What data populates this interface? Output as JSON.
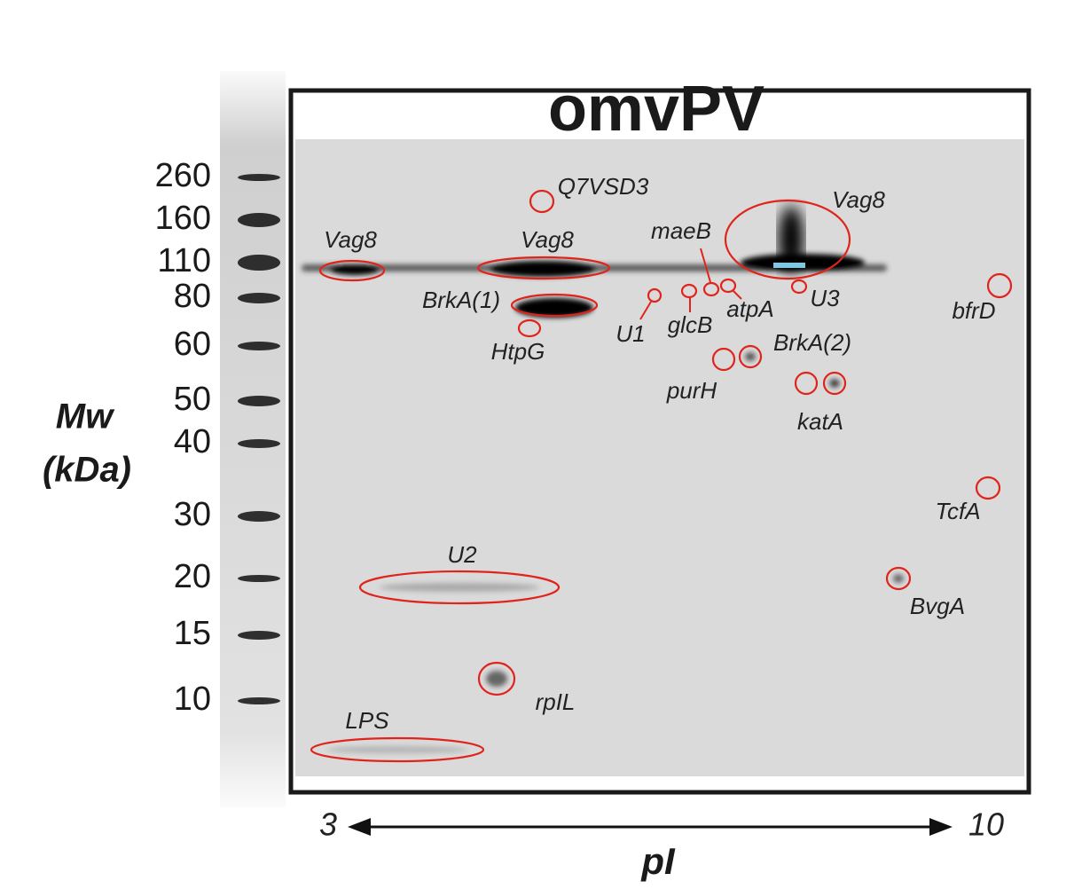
{
  "title": "omvPV",
  "mw_axis": {
    "label_line1": "Mw",
    "label_line2": "(kDa)",
    "markers": [
      260,
      160,
      110,
      80,
      60,
      50,
      40,
      30,
      20,
      15,
      10
    ]
  },
  "pi_axis": {
    "label": "pI",
    "start": "3",
    "end": "10"
  },
  "spots": [
    {
      "label": "Q7VSD3"
    },
    {
      "label": "Vag8"
    },
    {
      "label": "Vag8"
    },
    {
      "label": "Vag8"
    },
    {
      "label": "maeB"
    },
    {
      "label": "BrkA(1)"
    },
    {
      "label": "HtpG"
    },
    {
      "label": "U1"
    },
    {
      "label": "glcB"
    },
    {
      "label": "atpA"
    },
    {
      "label": "U3"
    },
    {
      "label": "bfrD"
    },
    {
      "label": "BrkA(2)"
    },
    {
      "label": "purH"
    },
    {
      "label": "katA"
    },
    {
      "label": "TcfA"
    },
    {
      "label": "BvgA"
    },
    {
      "label": "U2"
    },
    {
      "label": "rpIL"
    },
    {
      "label": "LPS"
    }
  ]
}
